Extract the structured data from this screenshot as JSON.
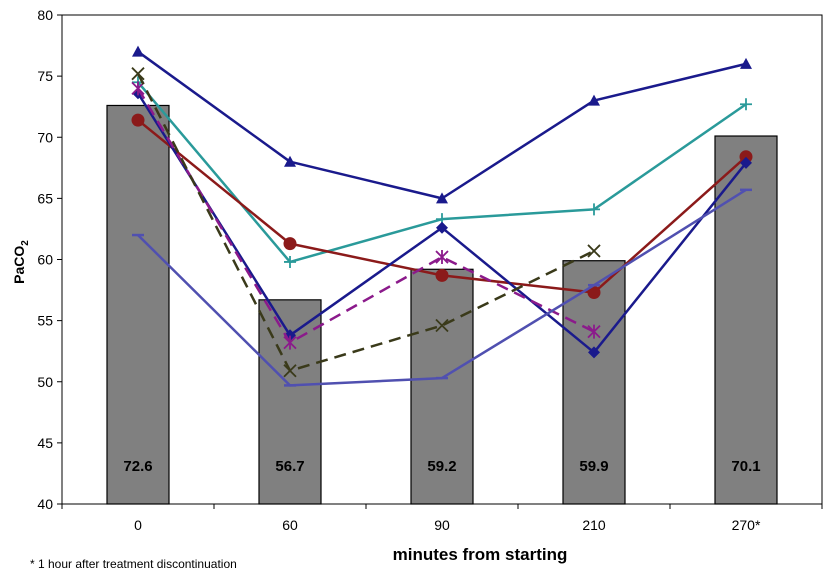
{
  "chart_data": {
    "type": "bar",
    "categories": [
      "0",
      "60",
      "90",
      "210",
      "270*"
    ],
    "bars": {
      "values": [
        72.6,
        56.7,
        59.2,
        59.9,
        70.1
      ],
      "labels": [
        "72.6",
        "56.7",
        "59.2",
        "59.9",
        "70.1"
      ],
      "color": "#808080"
    },
    "series": [
      {
        "type": "line",
        "marker": "triangle",
        "color": "#1a1a8c",
        "dash": false,
        "values": [
          77.0,
          68.0,
          65.0,
          73.0,
          76.0
        ]
      },
      {
        "type": "line",
        "marker": "plus",
        "color": "#2a9a9a",
        "dash": false,
        "values": [
          74.5,
          59.8,
          63.3,
          64.1,
          72.7
        ]
      },
      {
        "type": "line",
        "marker": "circle",
        "color": "#8b1a1a",
        "dash": false,
        "values": [
          71.4,
          61.3,
          58.7,
          57.3,
          68.4
        ]
      },
      {
        "type": "line",
        "marker": "diamond",
        "color": "#1a1a8c",
        "dash": false,
        "values": [
          73.6,
          53.8,
          62.6,
          52.4,
          67.9
        ]
      },
      {
        "type": "line",
        "marker": "asterisk",
        "color": "#8b1a8b",
        "dash": true,
        "values": [
          74.0,
          53.2,
          60.2,
          54.1,
          null
        ]
      },
      {
        "type": "line",
        "marker": "x",
        "color": "#3a3a1a",
        "dash": true,
        "values": [
          75.2,
          50.9,
          54.6,
          60.7,
          null
        ]
      },
      {
        "type": "line",
        "marker": "dash",
        "color": "#5050b0",
        "dash": false,
        "values": [
          62.0,
          49.7,
          50.3,
          57.9,
          65.7
        ]
      }
    ],
    "ylabel": "PaCO",
    "ylabel_sub": "2",
    "xlabel": "minutes from starting",
    "ylim": [
      40,
      80
    ],
    "yticks": [
      "40",
      "45",
      "50",
      "55",
      "60",
      "65",
      "70",
      "75",
      "80"
    ],
    "grid": false,
    "legend": "none",
    "footnote": "* 1 hour after treatment discontinuation"
  }
}
